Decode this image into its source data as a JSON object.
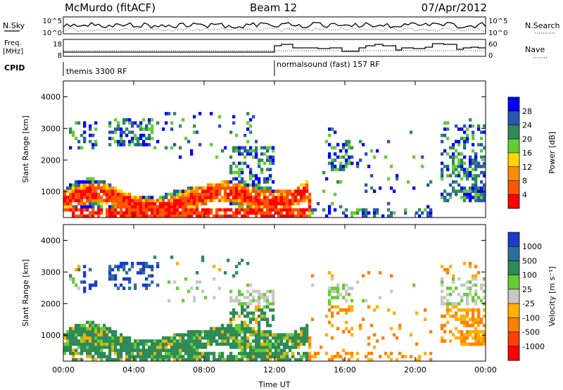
{
  "header": {
    "station": "McMurdo (fitACF)",
    "beam": "Beam 12",
    "date": "07/Apr/2012"
  },
  "top_panel": {
    "left_label": "N.Sky",
    "left_ticks": [
      "10^5",
      "10^0"
    ],
    "right_ticks": [
      "10^5",
      "10^0"
    ],
    "right_label": "N.Search"
  },
  "freq_panel": {
    "left_label_1": "Freq.",
    "left_label_2": "[MHz]",
    "left_ticks": [
      "18",
      "8"
    ],
    "right_ticks": [
      "60",
      "0"
    ],
    "right_label": "Nave"
  },
  "cpid": {
    "label": "CPID",
    "modes": [
      "themis 3300 RF",
      "normalsound (fast) 157 RF"
    ]
  },
  "chart_data": [
    {
      "type": "heatmap",
      "title": "",
      "ylabel": "Slant Range [km]",
      "xlabel": "",
      "ylim": [
        180,
        4500
      ],
      "x_ticks": [
        "00:00",
        "04:00",
        "08:00",
        "12:00",
        "16:00",
        "20:00",
        "00:00"
      ],
      "y_ticks": [
        "1000",
        "2000",
        "3000",
        "4000"
      ],
      "colorbar": {
        "label": "Power [dB]",
        "ticks": [
          "4",
          "8",
          "12",
          "16",
          "20",
          "24",
          "28"
        ],
        "colors": [
          "#0000ff",
          "#2a55b0",
          "#2e8b57",
          "#66cc33",
          "#ffd700",
          "#ff8c00",
          "#ff5500",
          "#ff0000"
        ]
      }
    },
    {
      "type": "heatmap",
      "title": "",
      "ylabel": "Slant Range [km]",
      "xlabel": "Time UT",
      "ylim": [
        180,
        4500
      ],
      "x_ticks": [
        "00:00",
        "04:00",
        "08:00",
        "12:00",
        "16:00",
        "20:00",
        "00:00"
      ],
      "y_ticks": [
        "1000",
        "2000",
        "3000",
        "4000"
      ],
      "colorbar": {
        "label": "Velocity [m s⁻¹]",
        "ticks": [
          "1000",
          "500",
          "100",
          "25",
          "-25",
          "-100",
          "-500",
          "-1000"
        ],
        "colors": [
          "#1a3cc8",
          "#2e6e9e",
          "#2e8b57",
          "#66cc33",
          "#c8c8c8",
          "#ffb000",
          "#ff8000",
          "#ff4000",
          "#ff0000"
        ]
      }
    }
  ]
}
